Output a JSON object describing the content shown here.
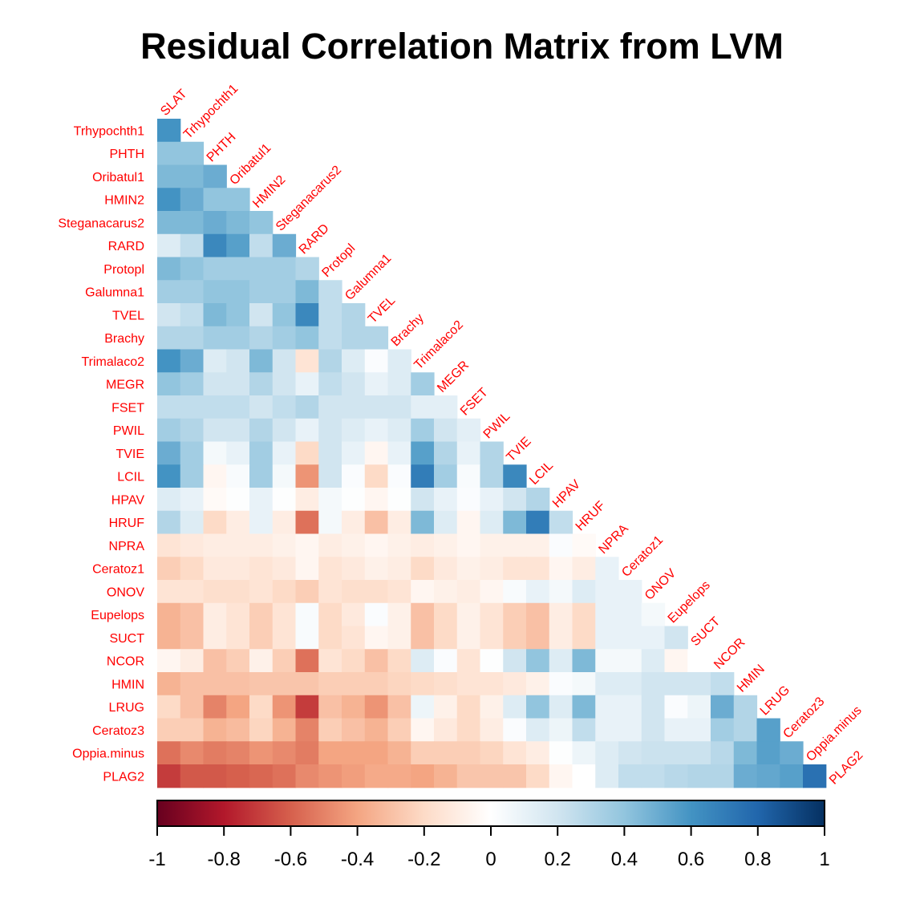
{
  "chart_data": {
    "type": "heatmap",
    "title": "Residual Correlation Matrix from LVM",
    "variables": [
      "SLAT",
      "Trhypochth1",
      "PHTH",
      "Oribatul1",
      "HMIN2",
      "Steganacarus2",
      "RARD",
      "Protopl",
      "Galumna1",
      "TVEL",
      "Brachy",
      "Trimalaco2",
      "MEGR",
      "FSET",
      "PWIL",
      "TVIE",
      "LCIL",
      "HPAV",
      "HRUF",
      "NPRA",
      "Ceratoz1",
      "ONOV",
      "Eupelops",
      "SUCT",
      "NCOR",
      "HMIN",
      "LRUG",
      "Ceratoz3",
      "Oppia.minus",
      "PLAG2"
    ],
    "lower_triangle": [
      [
        0.6
      ],
      [
        0.4,
        0.4
      ],
      [
        0.45,
        0.45,
        0.5
      ],
      [
        0.6,
        0.5,
        0.4,
        0.4
      ],
      [
        0.45,
        0.45,
        0.5,
        0.45,
        0.4
      ],
      [
        0.15,
        0.25,
        0.65,
        0.55,
        0.25,
        0.5
      ],
      [
        0.45,
        0.4,
        0.35,
        0.35,
        0.35,
        0.35,
        0.3
      ],
      [
        0.35,
        0.35,
        0.4,
        0.4,
        0.35,
        0.35,
        0.45,
        0.25
      ],
      [
        0.2,
        0.25,
        0.45,
        0.4,
        0.2,
        0.4,
        0.65,
        0.25,
        0.3
      ],
      [
        0.3,
        0.3,
        0.35,
        0.35,
        0.3,
        0.35,
        0.4,
        0.25,
        0.3,
        0.3
      ],
      [
        0.6,
        0.5,
        0.15,
        0.2,
        0.45,
        0.2,
        -0.15,
        0.3,
        0.15,
        0.02,
        0.15
      ],
      [
        0.4,
        0.35,
        0.2,
        0.2,
        0.3,
        0.2,
        0.1,
        0.25,
        0.2,
        0.1,
        0.15,
        0.35
      ],
      [
        0.25,
        0.25,
        0.25,
        0.25,
        0.2,
        0.25,
        0.3,
        0.2,
        0.2,
        0.2,
        0.2,
        0.12,
        0.12
      ],
      [
        0.35,
        0.3,
        0.2,
        0.2,
        0.3,
        0.2,
        0.1,
        0.2,
        0.15,
        0.1,
        0.15,
        0.35,
        0.2,
        0.12
      ],
      [
        0.5,
        0.35,
        0.05,
        0.1,
        0.35,
        0.1,
        -0.2,
        0.2,
        0.1,
        -0.05,
        0.1,
        0.55,
        0.3,
        0.1,
        0.3
      ],
      [
        0.6,
        0.35,
        -0.05,
        0.03,
        0.35,
        0.05,
        -0.45,
        0.2,
        0.02,
        -0.2,
        0.02,
        0.7,
        0.35,
        0.03,
        0.3,
        0.65
      ],
      [
        0.15,
        0.1,
        -0.03,
        0.01,
        0.1,
        0.01,
        -0.1,
        0.05,
        0.01,
        -0.05,
        0.01,
        0.2,
        0.1,
        0.02,
        0.1,
        0.2,
        0.3
      ],
      [
        0.3,
        0.15,
        -0.2,
        -0.1,
        0.1,
        -0.1,
        -0.55,
        0.05,
        -0.1,
        -0.3,
        -0.1,
        0.45,
        0.15,
        -0.05,
        0.15,
        0.45,
        0.7,
        0.25
      ],
      [
        -0.15,
        -0.12,
        -0.1,
        -0.1,
        -0.1,
        -0.08,
        -0.05,
        -0.1,
        -0.08,
        -0.05,
        -0.08,
        -0.1,
        -0.08,
        -0.05,
        -0.08,
        -0.08,
        -0.08,
        0.02,
        -0.03
      ],
      [
        -0.25,
        -0.2,
        -0.12,
        -0.12,
        -0.15,
        -0.12,
        -0.05,
        -0.15,
        -0.12,
        -0.08,
        -0.1,
        -0.2,
        -0.12,
        -0.08,
        -0.1,
        -0.15,
        -0.15,
        -0.05,
        -0.1,
        0.1
      ],
      [
        -0.15,
        -0.15,
        -0.18,
        -0.18,
        -0.15,
        -0.2,
        -0.25,
        -0.15,
        -0.18,
        -0.18,
        -0.15,
        -0.05,
        -0.08,
        -0.1,
        -0.05,
        0.03,
        0.1,
        0.05,
        0.15,
        0.1,
        0.1
      ],
      [
        -0.35,
        -0.3,
        -0.1,
        -0.15,
        -0.25,
        -0.15,
        0.03,
        -0.2,
        -0.12,
        0.02,
        -0.08,
        -0.3,
        -0.2,
        -0.08,
        -0.15,
        -0.25,
        -0.3,
        -0.1,
        -0.2,
        0.1,
        0.1,
        0.05
      ],
      [
        -0.35,
        -0.3,
        -0.1,
        -0.15,
        -0.25,
        -0.15,
        0.03,
        -0.2,
        -0.15,
        -0.05,
        -0.08,
        -0.3,
        -0.2,
        -0.08,
        -0.15,
        -0.25,
        -0.3,
        -0.1,
        -0.2,
        0.1,
        0.1,
        0.1,
        0.2
      ],
      [
        -0.05,
        -0.1,
        -0.3,
        -0.25,
        -0.08,
        -0.25,
        -0.55,
        -0.15,
        -0.2,
        -0.3,
        -0.2,
        0.15,
        0.02,
        -0.15,
        0.01,
        0.2,
        0.4,
        0.15,
        0.45,
        0.05,
        0.05,
        0.15,
        -0.05,
        0.0
      ],
      [
        -0.35,
        -0.3,
        -0.3,
        -0.3,
        -0.28,
        -0.28,
        -0.28,
        -0.25,
        -0.25,
        -0.25,
        -0.22,
        -0.2,
        -0.18,
        -0.15,
        -0.15,
        -0.12,
        -0.08,
        0.02,
        0.05,
        0.15,
        0.15,
        0.2,
        0.2,
        0.2,
        0.25
      ],
      [
        -0.2,
        -0.3,
        -0.5,
        -0.4,
        -0.2,
        -0.45,
        -0.7,
        -0.3,
        -0.35,
        -0.45,
        -0.3,
        0.08,
        -0.08,
        -0.2,
        -0.08,
        0.15,
        0.4,
        0.15,
        0.45,
        0.1,
        0.1,
        0.2,
        0.02,
        0.08,
        0.5,
        0.3
      ],
      [
        -0.25,
        -0.25,
        -0.35,
        -0.32,
        -0.22,
        -0.35,
        -0.5,
        -0.25,
        -0.3,
        -0.35,
        -0.25,
        -0.05,
        -0.12,
        -0.2,
        -0.1,
        0.02,
        0.15,
        0.08,
        0.25,
        0.1,
        0.1,
        0.2,
        0.1,
        0.1,
        0.35,
        0.3,
        0.55
      ],
      [
        -0.55,
        -0.48,
        -0.52,
        -0.5,
        -0.45,
        -0.48,
        -0.52,
        -0.4,
        -0.4,
        -0.4,
        -0.35,
        -0.25,
        -0.25,
        -0.25,
        -0.22,
        -0.15,
        -0.1,
        0.01,
        0.08,
        0.15,
        0.2,
        0.22,
        0.22,
        0.22,
        0.28,
        0.45,
        0.55,
        0.5
      ],
      [
        -0.7,
        -0.62,
        -0.62,
        -0.6,
        -0.58,
        -0.55,
        -0.48,
        -0.45,
        -0.42,
        -0.38,
        -0.38,
        -0.4,
        -0.35,
        -0.28,
        -0.28,
        -0.28,
        -0.2,
        -0.05,
        0.0,
        0.15,
        0.25,
        0.25,
        0.28,
        0.3,
        0.3,
        0.5,
        0.52,
        0.55,
        0.75
      ]
    ],
    "colorbar": {
      "range": [
        -1,
        1
      ],
      "ticks": [
        "-1",
        "-0.8",
        "-0.6",
        "-0.4",
        "-0.2",
        "0",
        "0.2",
        "0.4",
        "0.6",
        "0.8",
        "1"
      ],
      "stops": [
        "#67001f",
        "#b2182b",
        "#d6604d",
        "#f4a582",
        "#fddbc7",
        "#ffffff",
        "#d1e5f0",
        "#92c5de",
        "#4393c3",
        "#2166ac",
        "#053061"
      ]
    },
    "label_color": "#ff0000",
    "grid": false,
    "legend": "bottom"
  }
}
